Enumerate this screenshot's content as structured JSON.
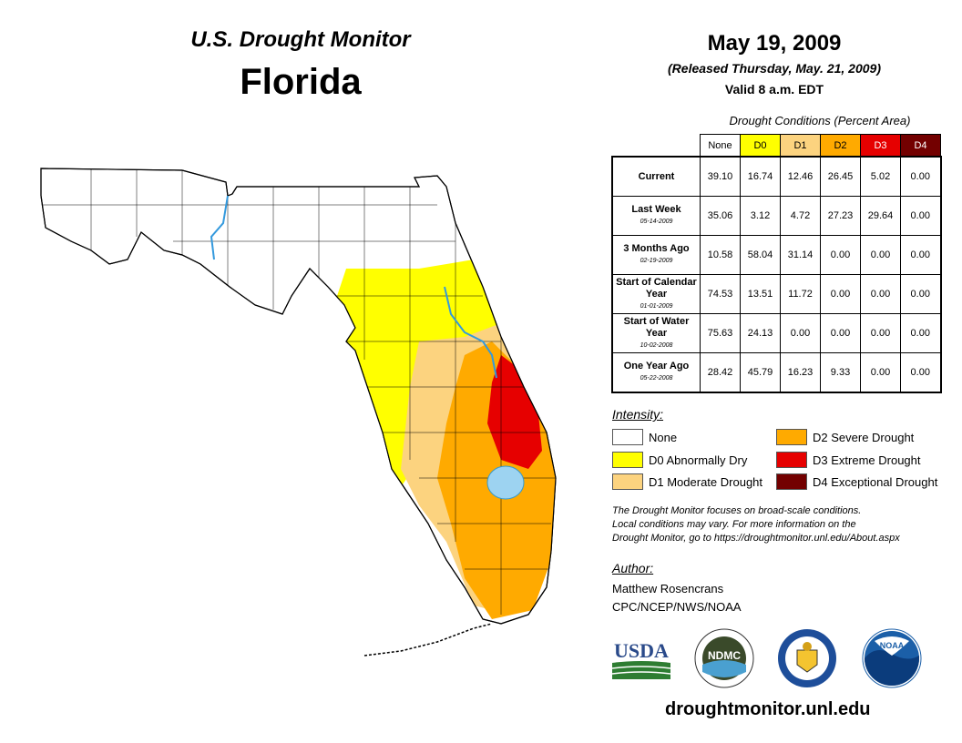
{
  "header": {
    "subtitle": "U.S. Drought Monitor",
    "state": "Florida",
    "date": "May 19, 2009",
    "released": "(Released Thursday, May. 21, 2009)",
    "valid": "Valid 8 a.m. EDT"
  },
  "table": {
    "title": "Drought Conditions (Percent Area)",
    "columns": [
      {
        "label": "None",
        "color": "#ffffff"
      },
      {
        "label": "D0",
        "color": "#ffff00"
      },
      {
        "label": "D1",
        "color": "#fcd37f"
      },
      {
        "label": "D2",
        "color": "#ffaa00"
      },
      {
        "label": "D3",
        "color": "#e60000"
      },
      {
        "label": "D4",
        "color": "#730000"
      }
    ],
    "rows": [
      {
        "label": "Current",
        "sub": "",
        "values": [
          "39.10",
          "16.74",
          "12.46",
          "26.45",
          "5.02",
          "0.00"
        ]
      },
      {
        "label": "Last Week",
        "sub": "05-14-2009",
        "values": [
          "35.06",
          "3.12",
          "4.72",
          "27.23",
          "29.64",
          "0.00"
        ]
      },
      {
        "label": "3 Months Ago",
        "sub": "02-19-2009",
        "values": [
          "10.58",
          "58.04",
          "31.14",
          "0.00",
          "0.00",
          "0.00"
        ]
      },
      {
        "label": "Start of Calendar Year",
        "sub": "01-01-2009",
        "values": [
          "74.53",
          "13.51",
          "11.72",
          "0.00",
          "0.00",
          "0.00"
        ]
      },
      {
        "label": "Start of Water Year",
        "sub": "10-02-2008",
        "values": [
          "75.63",
          "24.13",
          "0.00",
          "0.00",
          "0.00",
          "0.00"
        ]
      },
      {
        "label": "One Year Ago",
        "sub": "05-22-2008",
        "values": [
          "28.42",
          "45.79",
          "16.23",
          "9.33",
          "0.00",
          "0.00"
        ]
      }
    ]
  },
  "legend": {
    "title": "Intensity:",
    "items": [
      {
        "label": "None",
        "color": "#ffffff"
      },
      {
        "label": "D0 Abnormally Dry",
        "color": "#ffff00"
      },
      {
        "label": "D1 Moderate Drought",
        "color": "#fcd37f"
      },
      {
        "label": "D2 Severe Drought",
        "color": "#ffaa00"
      },
      {
        "label": "D3 Extreme Drought",
        "color": "#e60000"
      },
      {
        "label": "D4 Exceptional Drought",
        "color": "#730000"
      }
    ]
  },
  "note": {
    "line1": "The Drought Monitor focuses on broad-scale conditions.",
    "line2": "Local conditions may vary. For more information on the",
    "line3": "Drought Monitor, go to https://droughtmonitor.unl.edu/About.aspx"
  },
  "author": {
    "title": "Author:",
    "name": "Matthew Rosencrans",
    "org": "CPC/NCEP/NWS/NOAA"
  },
  "logos": {
    "usda": "USDA",
    "ndmc": "NDMC",
    "noaa": "NOAA"
  },
  "footer": {
    "site": "droughtmonitor.unl.edu"
  }
}
